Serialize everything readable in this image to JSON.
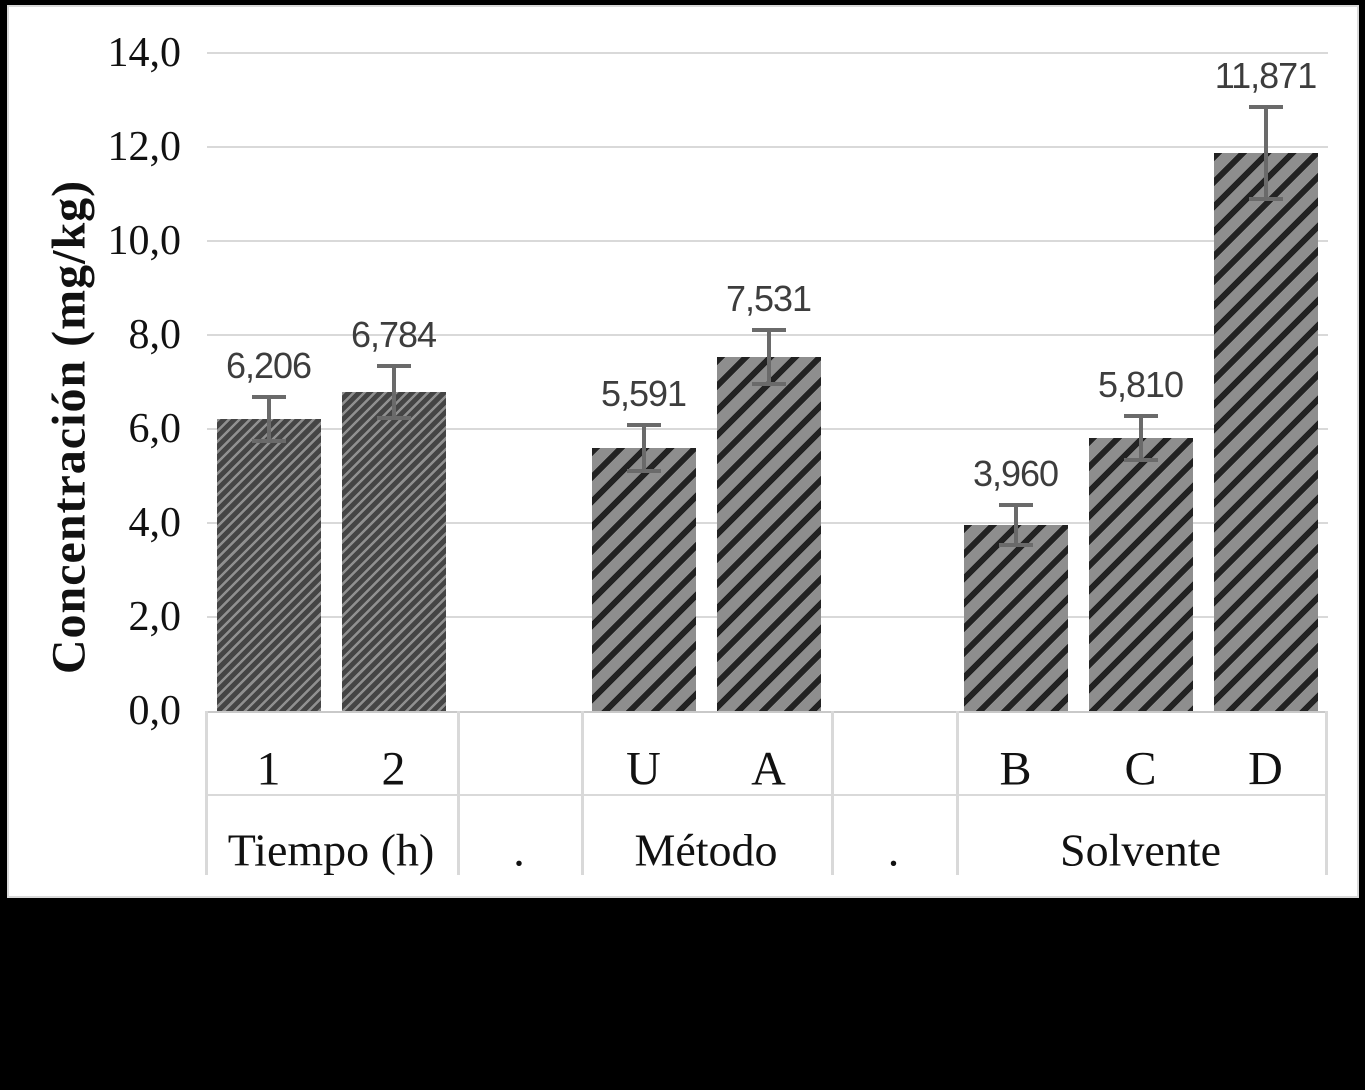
{
  "chart_data": {
    "type": "bar",
    "title": "",
    "ylabel": "Concentración (mg/kg)",
    "xlabel": "",
    "ylim": [
      0,
      14
    ],
    "ytick_step": 2,
    "ytick_labels": [
      "0,0",
      "2,0",
      "4,0",
      "6,0",
      "8,0",
      "10,0",
      "12,0",
      "14,0"
    ],
    "grid": "horizontal",
    "legend": "none",
    "decimal_separator": ",",
    "groups": [
      {
        "label": "Tiempo (h)",
        "spacer": false,
        "pattern": "fine",
        "bars": [
          {
            "tick": "1",
            "value": 6.206,
            "label": "6,206",
            "error": 0.47
          },
          {
            "tick": "2",
            "value": 6.784,
            "label": "6,784",
            "error": 0.55
          }
        ]
      },
      {
        "label": ".",
        "spacer": true,
        "pattern": "none",
        "bars": []
      },
      {
        "label": "Método",
        "spacer": false,
        "pattern": "coarse",
        "bars": [
          {
            "tick": "U",
            "value": 5.591,
            "label": "5,591",
            "error": 0.49
          },
          {
            "tick": "A",
            "value": 7.531,
            "label": "7,531",
            "error": 0.57
          }
        ]
      },
      {
        "label": ".",
        "spacer": true,
        "pattern": "none",
        "bars": []
      },
      {
        "label": "Solvente",
        "spacer": false,
        "pattern": "coarse",
        "bars": [
          {
            "tick": "B",
            "value": 3.96,
            "label": "3,960",
            "error": 0.43
          },
          {
            "tick": "C",
            "value": 5.81,
            "label": "5,810",
            "error": 0.47
          },
          {
            "tick": "D",
            "value": 11.871,
            "label": "11,871",
            "error": 0.98
          }
        ]
      }
    ]
  },
  "colors": {
    "page_bg": "#000000",
    "panel_bg": "#ffffff",
    "panel_border": "#d9d9d9",
    "gridline": "#d9d9d9",
    "axis_line": "#c9c9c9",
    "table_line": "#d9d9d9",
    "axis_text": "#111111",
    "bar_label_text": "#3d3d3d",
    "error_bar": "#6a6a6a",
    "pattern_fine_base": "#454545",
    "pattern_fine_stripe": "#909090",
    "pattern_coarse_base": "#8e8e8e",
    "pattern_coarse_stripe": "#222222"
  }
}
